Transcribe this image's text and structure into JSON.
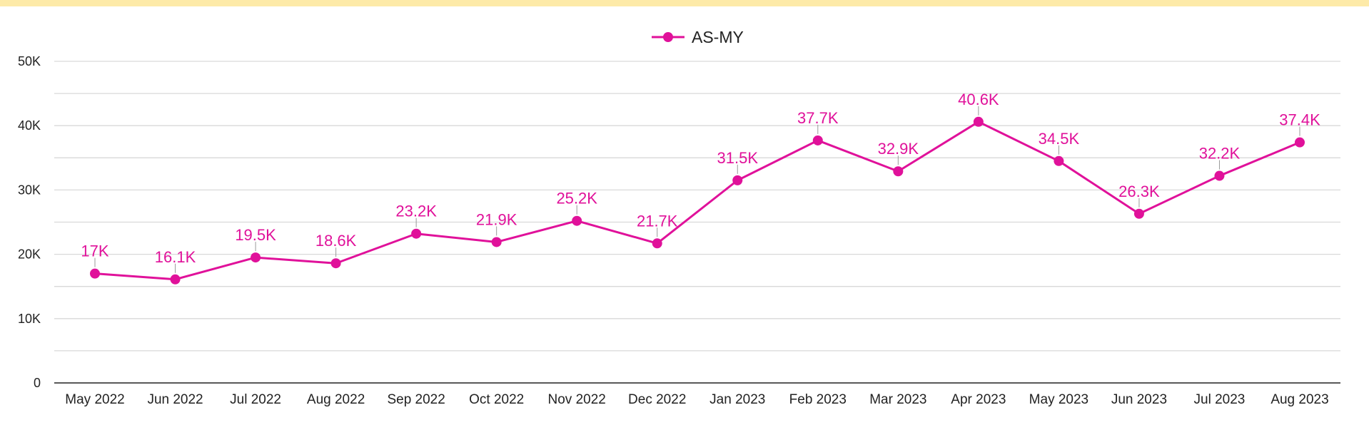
{
  "colors": {
    "series": "#e0119a",
    "grid": "#d9d9d9",
    "axis": "#222222",
    "top_bar": "#fdeaa8"
  },
  "chart_data": {
    "type": "line",
    "title": "",
    "xlabel": "",
    "ylabel": "",
    "categories": [
      "May 2022",
      "Jun 2022",
      "Jul 2022",
      "Aug 2022",
      "Sep 2022",
      "Oct 2022",
      "Nov 2022",
      "Dec 2022",
      "Jan 2023",
      "Feb 2023",
      "Mar 2023",
      "Apr 2023",
      "May 2023",
      "Jun 2023",
      "Jul 2023",
      "Aug 2023"
    ],
    "series": [
      {
        "name": "AS-MY",
        "values": [
          17000,
          16100,
          19500,
          18600,
          23200,
          21900,
          25200,
          21700,
          31500,
          37700,
          32900,
          40600,
          34500,
          26300,
          32200,
          37400
        ],
        "labels": [
          "17K",
          "16.1K",
          "19.5K",
          "18.6K",
          "23.2K",
          "21.9K",
          "25.2K",
          "21.7K",
          "31.5K",
          "37.7K",
          "32.9K",
          "40.6K",
          "34.5K",
          "26.3K",
          "32.2K",
          "37.4K"
        ]
      }
    ],
    "ylim": [
      0,
      50000
    ],
    "yticks": [
      0,
      10000,
      20000,
      30000,
      40000,
      50000
    ],
    "ytick_labels": [
      "0",
      "10K",
      "20K",
      "30K",
      "40K",
      "50K"
    ],
    "minor_gridlines": true,
    "grid": true,
    "legend": {
      "position": "top-center",
      "marker": "circle-line"
    }
  }
}
